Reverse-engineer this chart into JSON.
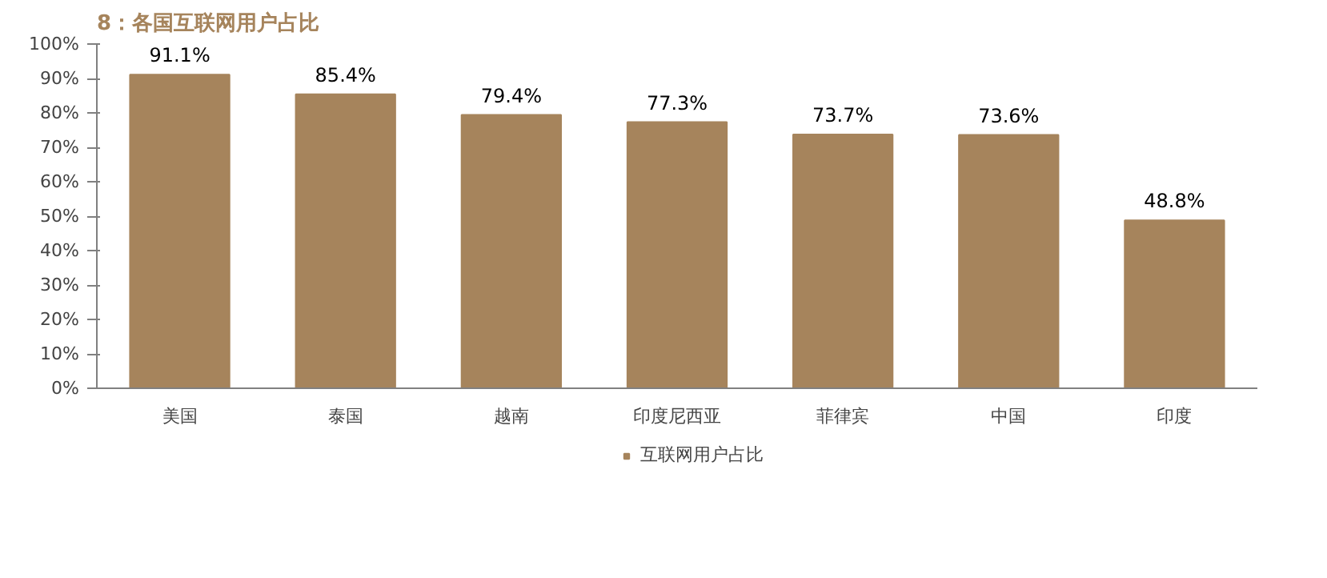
{
  "chart_data": {
    "type": "bar",
    "title": "8：各国互联网用户占比",
    "categories": [
      "美国",
      "泰国",
      "越南",
      "印度尼西亚",
      "菲律宾",
      "中国",
      "印度"
    ],
    "series": [
      {
        "name": "互联网用户占比",
        "color": "#a6845c",
        "values": [
          91.1,
          85.4,
          79.4,
          77.3,
          73.7,
          73.6,
          48.8
        ]
      }
    ],
    "value_labels": [
      "91.1%",
      "85.4%",
      "79.4%",
      "77.3%",
      "73.7%",
      "73.6%",
      "48.8%"
    ],
    "ylim": [
      0,
      100
    ],
    "yticks": [
      {
        "value": 0,
        "label": "0%"
      },
      {
        "value": 10,
        "label": "10%"
      },
      {
        "value": 20,
        "label": "20%"
      },
      {
        "value": 30,
        "label": "30%"
      },
      {
        "value": 40,
        "label": "40%"
      },
      {
        "value": 50,
        "label": "50%"
      },
      {
        "value": 60,
        "label": "60%"
      },
      {
        "value": 70,
        "label": "70%"
      },
      {
        "value": 80,
        "label": "80%"
      },
      {
        "value": 90,
        "label": "90%"
      },
      {
        "value": 100,
        "label": "100%"
      }
    ],
    "grid": false,
    "legend": "bottom"
  }
}
